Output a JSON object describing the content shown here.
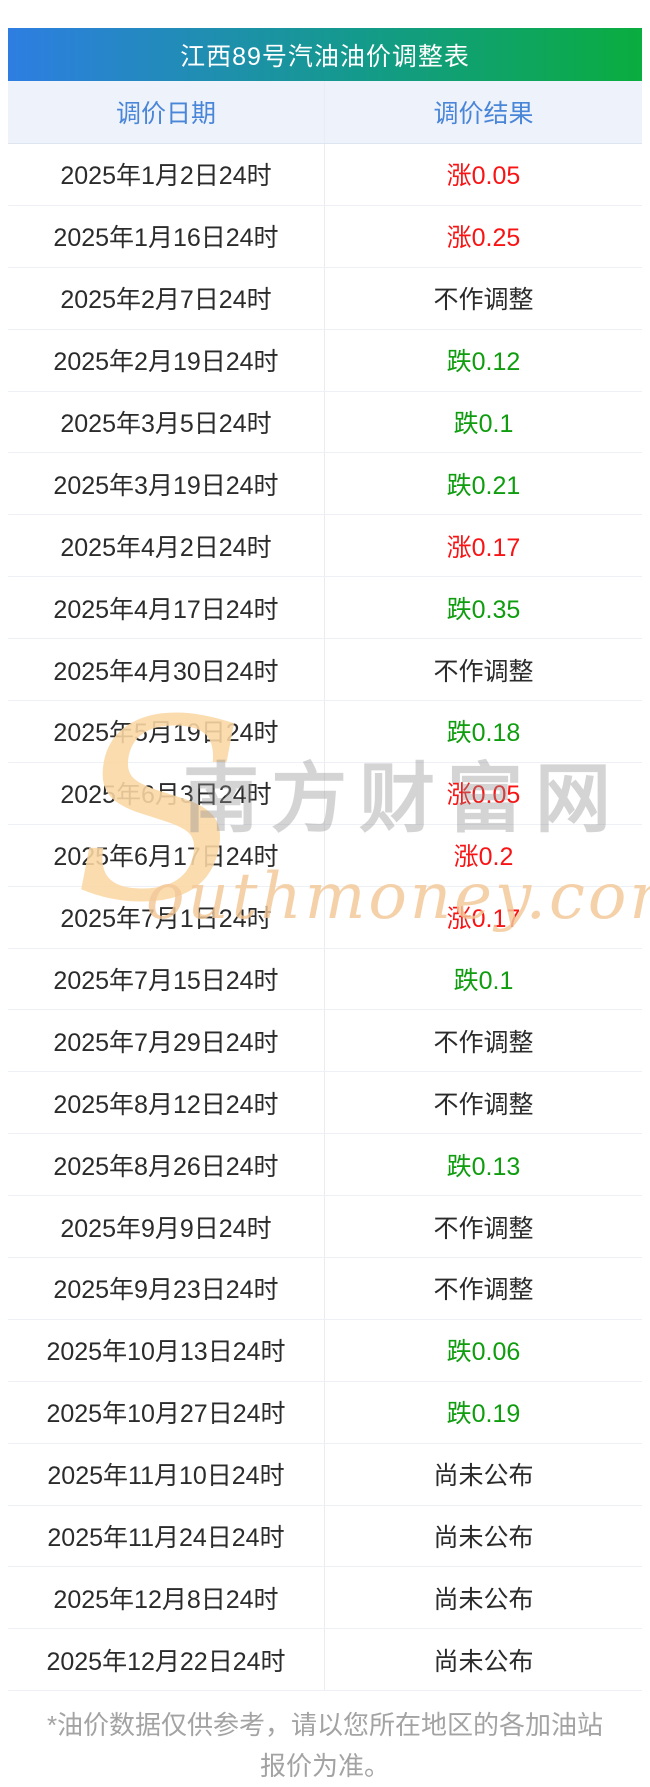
{
  "title": "江西89号汽油油价调整表",
  "columns": {
    "date": "调价日期",
    "result": "调价结果"
  },
  "rows": [
    {
      "date": "2025年1月2日24时",
      "result": "涨0.05",
      "type": "up"
    },
    {
      "date": "2025年1月16日24时",
      "result": "涨0.25",
      "type": "up"
    },
    {
      "date": "2025年2月7日24时",
      "result": "不作调整",
      "type": "flat"
    },
    {
      "date": "2025年2月19日24时",
      "result": "跌0.12",
      "type": "down"
    },
    {
      "date": "2025年3月5日24时",
      "result": "跌0.1",
      "type": "down"
    },
    {
      "date": "2025年3月19日24时",
      "result": "跌0.21",
      "type": "down"
    },
    {
      "date": "2025年4月2日24时",
      "result": "涨0.17",
      "type": "up"
    },
    {
      "date": "2025年4月17日24时",
      "result": "跌0.35",
      "type": "down"
    },
    {
      "date": "2025年4月30日24时",
      "result": "不作调整",
      "type": "flat"
    },
    {
      "date": "2025年5月19日24时",
      "result": "跌0.18",
      "type": "down"
    },
    {
      "date": "2025年6月3日24时",
      "result": "涨0.05",
      "type": "up"
    },
    {
      "date": "2025年6月17日24时",
      "result": "涨0.2",
      "type": "up"
    },
    {
      "date": "2025年7月1日24时",
      "result": "涨0.17",
      "type": "up"
    },
    {
      "date": "2025年7月15日24时",
      "result": "跌0.1",
      "type": "down"
    },
    {
      "date": "2025年7月29日24时",
      "result": "不作调整",
      "type": "flat"
    },
    {
      "date": "2025年8月12日24时",
      "result": "不作调整",
      "type": "flat"
    },
    {
      "date": "2025年8月26日24时",
      "result": "跌0.13",
      "type": "down"
    },
    {
      "date": "2025年9月9日24时",
      "result": "不作调整",
      "type": "flat"
    },
    {
      "date": "2025年9月23日24时",
      "result": "不作调整",
      "type": "flat"
    },
    {
      "date": "2025年10月13日24时",
      "result": "跌0.06",
      "type": "down"
    },
    {
      "date": "2025年10月27日24时",
      "result": "跌0.19",
      "type": "down"
    },
    {
      "date": "2025年11月10日24时",
      "result": "尚未公布",
      "type": "pending"
    },
    {
      "date": "2025年11月24日24时",
      "result": "尚未公布",
      "type": "pending"
    },
    {
      "date": "2025年12月8日24时",
      "result": "尚未公布",
      "type": "pending"
    },
    {
      "date": "2025年12月22日24时",
      "result": "尚未公布",
      "type": "pending"
    }
  ],
  "watermark": {
    "flourish": "S",
    "cn": "南方财富网",
    "en": "outhmoney.com"
  },
  "footer": {
    "note": "*油价数据仅供参考，请以您所在地区的各加油站报价为准。"
  },
  "colors": {
    "up": "#f81414",
    "down": "#0f9d0f",
    "gradient_start": "#2e7ee2",
    "gradient_mid": "#149a8c",
    "gradient_end": "#0aad3f"
  }
}
